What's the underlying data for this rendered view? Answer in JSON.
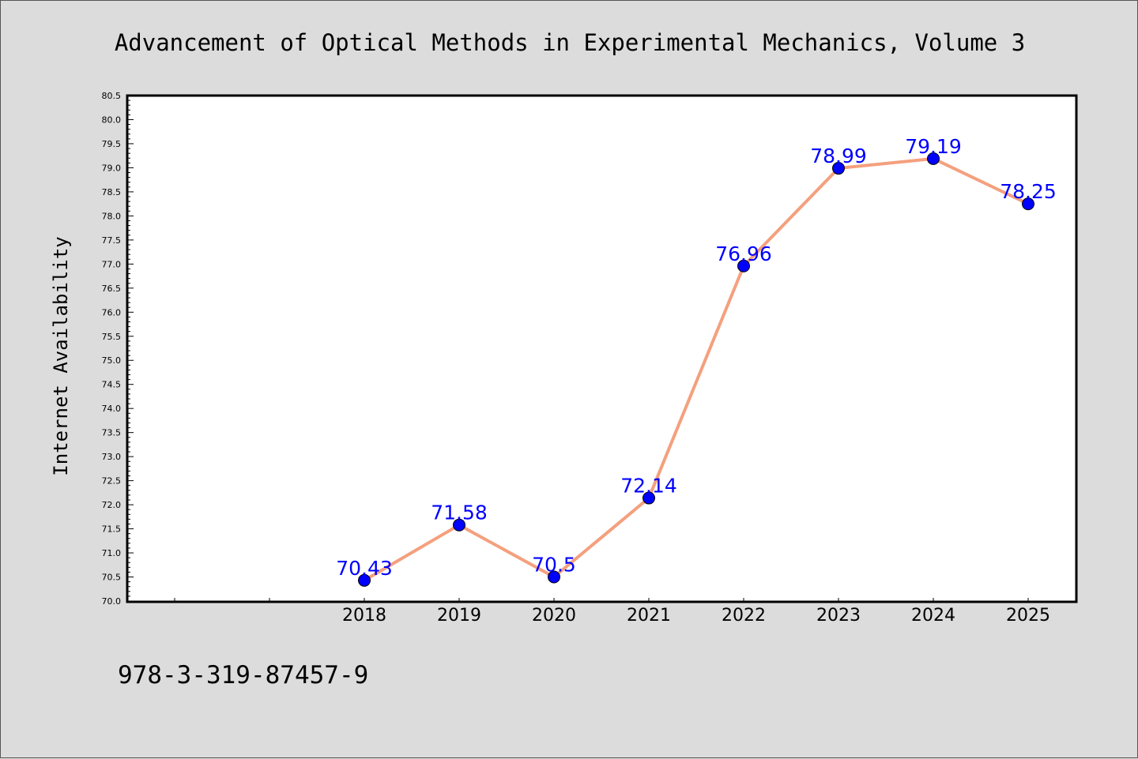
{
  "chart_data": {
    "type": "line",
    "title": "Advancement of Optical Methods in Experimental Mechanics, Volume 3",
    "xlabel": "",
    "ylabel": "Internet Availability",
    "categories": [
      "2018",
      "2019",
      "2020",
      "2021",
      "2022",
      "2023",
      "2024",
      "2025"
    ],
    "series": [
      {
        "values": [
          70.43,
          71.58,
          70.5,
          72.14,
          76.96,
          78.99,
          79.19,
          78.25
        ],
        "labels": [
          "70.43",
          "71.58",
          "70.5",
          "72.14",
          "76.96",
          "78.99",
          "79.19",
          "78.25"
        ]
      }
    ],
    "ylim": [
      70.0,
      80.5
    ],
    "yticks": [
      "70.0",
      "70.5",
      "71.0",
      "71.5",
      "72.0",
      "72.5",
      "73.0",
      "73.5",
      "74.0",
      "74.5",
      "75.0",
      "75.5",
      "76.0",
      "76.5",
      "77.0",
      "77.5",
      "78.0",
      "78.5",
      "79.0",
      "79.5",
      "80.0",
      "80.5"
    ],
    "grid": false,
    "colors": {
      "line": "#f4a07e",
      "marker": "#0000ff",
      "data_label": "#0000ff",
      "background": "#dcdcdc",
      "plot_background": "#ffffff"
    }
  },
  "footer": {
    "isbn": "978-3-319-87457-9"
  }
}
